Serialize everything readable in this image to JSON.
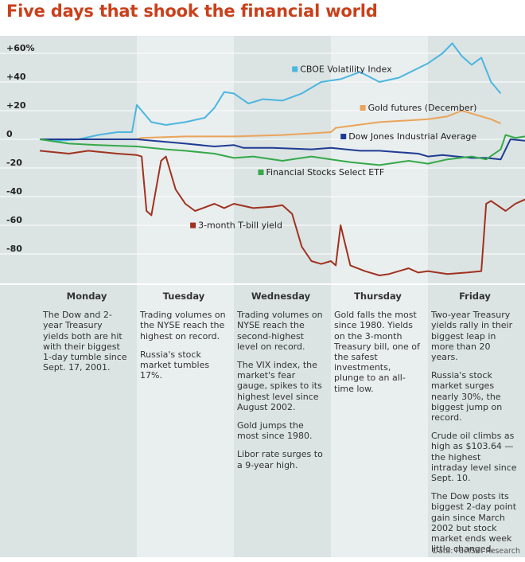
{
  "title": "Five days that shook the financial world",
  "source": "Data: FactSet Research",
  "colors": {
    "CBOE Volatility Index": "#4bb6e0",
    "Gold futures (December)": "#eaa45a",
    "Dow Jones Industrial Average": "#1f3c93",
    "Financial Stocks Select ETF": "#35a94a",
    "3-month T-bill yield": "#a0321f",
    "band_dark": "#dbe3e3",
    "band_light": "#e9eeee",
    "grid": "#ffffff"
  },
  "chart_data": {
    "type": "line",
    "title": "Five days that shook the financial world",
    "xlabel": "",
    "ylabel": "",
    "categories": [
      "Monday",
      "Tuesday",
      "Wednesday",
      "Thursday",
      "Friday"
    ],
    "yticks": [
      "+60%",
      "+40",
      "+20",
      "0",
      "-20",
      "-40",
      "-60",
      "-80"
    ],
    "ytick_values": [
      60,
      40,
      20,
      0,
      -20,
      -40,
      -60,
      -80
    ],
    "ylim": [
      -100,
      70
    ],
    "xlim": [
      0,
      5
    ],
    "grid": true,
    "series": [
      {
        "name": "CBOE Volatility Index",
        "label_at": [
          2.6,
          47
        ],
        "x": [
          0,
          0.2,
          0.4,
          0.6,
          0.8,
          0.95,
          1.0,
          1.05,
          1.15,
          1.3,
          1.5,
          1.7,
          1.8,
          1.9,
          2.0,
          2.15,
          2.3,
          2.5,
          2.7,
          2.9,
          3.1,
          3.3,
          3.5,
          3.7,
          3.85,
          4.0,
          4.15,
          4.25,
          4.35,
          4.45,
          4.55,
          4.65,
          4.75
        ],
        "values": [
          0,
          -1,
          0,
          3,
          5,
          5,
          24,
          20,
          12,
          10,
          12,
          15,
          22,
          33,
          32,
          25,
          28,
          27,
          32,
          40,
          42,
          47,
          40,
          43,
          48,
          53,
          60,
          67,
          58,
          52,
          57,
          40,
          32
        ]
      },
      {
        "name": "Gold futures (December)",
        "label_at": [
          3.3,
          20
        ],
        "x": [
          0,
          0.5,
          1.0,
          1.05,
          1.5,
          2.0,
          2.5,
          3.0,
          3.05,
          3.5,
          4.0,
          4.2,
          4.35,
          4.5,
          4.65,
          4.75
        ],
        "values": [
          0,
          0,
          0,
          1,
          2,
          2,
          3,
          5,
          8,
          12,
          14,
          16,
          20,
          17,
          14,
          11
        ]
      },
      {
        "name": "Dow Jones Industrial Average",
        "label_at": [
          3.1,
          0
        ],
        "x": [
          0,
          0.5,
          1.0,
          1.5,
          1.8,
          2.0,
          2.1,
          2.4,
          2.8,
          3.0,
          3.3,
          3.5,
          3.7,
          3.9,
          4.0,
          4.15,
          4.3,
          4.45,
          4.6,
          4.75,
          4.85,
          5.0
        ],
        "values": [
          0,
          0,
          0,
          -3,
          -5,
          -4,
          -6,
          -6,
          -7,
          -6,
          -8,
          -8,
          -9,
          -10,
          -12,
          -11,
          -12,
          -13,
          -13,
          -14,
          0,
          -1
        ]
      },
      {
        "name": "Financial Stocks Select ETF",
        "label_at": [
          2.25,
          -25
        ],
        "x": [
          0,
          0.3,
          0.6,
          1.0,
          1.3,
          1.5,
          1.8,
          2.0,
          2.2,
          2.5,
          2.8,
          3.0,
          3.2,
          3.5,
          3.8,
          4.0,
          4.2,
          4.45,
          4.6,
          4.75,
          4.8,
          4.9,
          5.0
        ],
        "values": [
          0,
          -3,
          -4,
          -5,
          -7,
          -8,
          -10,
          -13,
          -12,
          -15,
          -12,
          -14,
          -16,
          -18,
          -15,
          -17,
          -14,
          -12,
          -14,
          -7,
          3,
          1,
          2
        ]
      },
      {
        "name": "3-month T-bill yield",
        "label_at": [
          1.55,
          -62
        ],
        "x": [
          0,
          0.3,
          0.5,
          0.8,
          1.0,
          1.05,
          1.1,
          1.15,
          1.25,
          1.3,
          1.4,
          1.5,
          1.6,
          1.8,
          1.9,
          2.0,
          2.2,
          2.4,
          2.5,
          2.6,
          2.7,
          2.8,
          2.9,
          3.0,
          3.05,
          3.1,
          3.2,
          3.35,
          3.5,
          3.6,
          3.8,
          3.9,
          4.0,
          4.2,
          4.4,
          4.55,
          4.6,
          4.65,
          4.8,
          4.9,
          5.0
        ],
        "values": [
          -8,
          -10,
          -8,
          -10,
          -11,
          -12,
          -50,
          -53,
          -15,
          -12,
          -35,
          -45,
          -50,
          -45,
          -48,
          -45,
          -48,
          -47,
          -46,
          -52,
          -75,
          -85,
          -87,
          -85,
          -88,
          -60,
          -88,
          -92,
          -95,
          -94,
          -90,
          -93,
          -92,
          -94,
          -93,
          -92,
          -45,
          -43,
          -50,
          -45,
          -42
        ]
      }
    ]
  },
  "days": [
    {
      "name": "Monday",
      "notes": [
        "The Dow and 2-year Treasury yields both are hit with their biggest 1-day tumble since Sept. 17, 2001."
      ]
    },
    {
      "name": "Tuesday",
      "notes": [
        "Trading volumes on the NYSE reach the highest on record.",
        "Russia's stock market tumbles 17%."
      ]
    },
    {
      "name": "Wednesday",
      "notes": [
        "Trading volumes on NYSE reach the second-highest level on record.",
        "The VIX index, the market's fear gauge, spikes to its highest level since August 2002.",
        "Gold jumps the most since 1980.",
        "Libor rate surges to a 9-year high."
      ]
    },
    {
      "name": "Thursday",
      "notes": [
        "Gold falls the most since 1980. Yields on the 3-month Treasury bill, one of the safest investments, plunge to an all-time low."
      ]
    },
    {
      "name": "Friday",
      "notes": [
        "Two-year Treasury yields rally in their biggest leap in more than 20 years.",
        "Russia's stock market surges nearly 30%, the biggest jump on record.",
        "Crude oil climbs as high as $103.64 — the highest intraday level since Sept. 10.",
        "The Dow posts its biggest 2-day point gain since March 2002 but stock market ends week little changed."
      ]
    }
  ]
}
